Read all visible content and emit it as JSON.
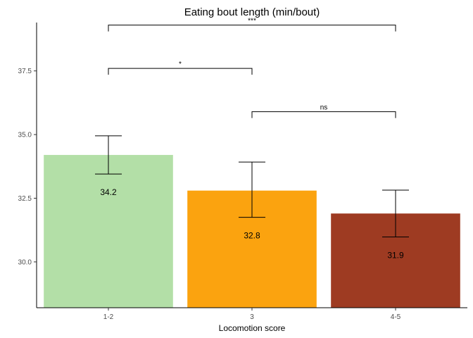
{
  "chart_data": {
    "type": "bar",
    "title": "Eating bout length (min/bout)",
    "xlabel": "Locomotion score",
    "ylabel": "",
    "categories": [
      "1-2",
      "3",
      "4-5"
    ],
    "values": [
      34.2,
      32.8,
      31.9
    ],
    "value_labels": [
      "34.2",
      "32.8",
      "31.9"
    ],
    "error_low": [
      33.45,
      31.75,
      30.98
    ],
    "error_high": [
      34.95,
      33.92,
      32.82
    ],
    "colors": [
      "#b3dfa7",
      "#fba30f",
      "#9e3b22"
    ],
    "ylim": [
      28.2,
      39.4
    ],
    "yticks": [
      30.0,
      32.5,
      35.0,
      37.5
    ],
    "ytick_labels": [
      "30.0",
      "32.5",
      "35.0",
      "37.5"
    ],
    "grid": false,
    "significance": [
      {
        "from": 1,
        "to": 2,
        "label": "ns",
        "y": 35.9
      },
      {
        "from": 0,
        "to": 1,
        "label": "*",
        "y": 37.6
      },
      {
        "from": 0,
        "to": 2,
        "label": "***",
        "y": 39.3
      }
    ]
  }
}
